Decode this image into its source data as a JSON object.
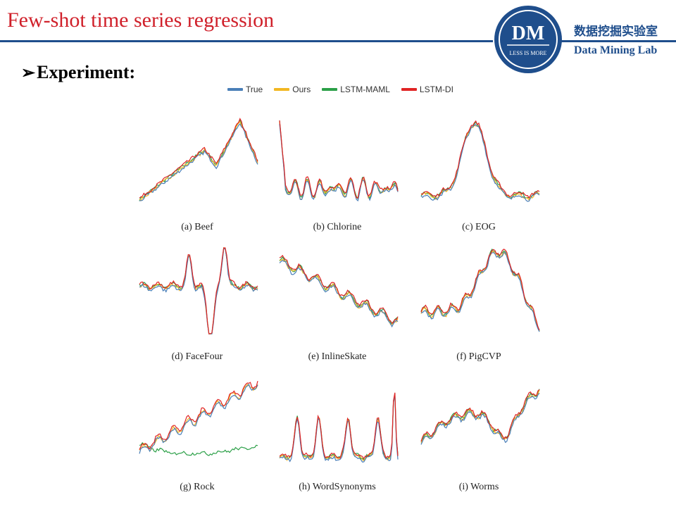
{
  "header": {
    "title": "Few-shot time series regression",
    "lab_name_cn": "数据挖掘实验室",
    "lab_name_en": "Data Mining Lab",
    "logo_text": "DM",
    "logo_subtext": "LESS IS MORE",
    "accent_color": "#d0202a",
    "brand_color": "#1f4e8c"
  },
  "section": {
    "bullet_icon": "arrow-bullet-icon",
    "heading": "Experiment:"
  },
  "legend": [
    {
      "name": "True",
      "color": "#4a7fb8"
    },
    {
      "name": "Ours",
      "color": "#f2b722"
    },
    {
      "name": "LSTM-MAML",
      "color": "#2ca048"
    },
    {
      "name": "LSTM-DI",
      "color": "#e02424"
    }
  ],
  "chart_data": [
    {
      "type": "line",
      "caption": "(a) Beef"
    },
    {
      "type": "line",
      "caption": "(b) Chlorine"
    },
    {
      "type": "line",
      "caption": "(c) EOG"
    },
    {
      "type": "line",
      "caption": "(d) FaceFour"
    },
    {
      "type": "line",
      "caption": "(e) InlineSkate"
    },
    {
      "type": "line",
      "caption": "(f) PigCVP"
    },
    {
      "type": "line",
      "caption": "(g) Rock"
    },
    {
      "type": "line",
      "caption": "(h) WordSynonyms"
    },
    {
      "type": "line",
      "caption": "(i) Worms"
    }
  ]
}
